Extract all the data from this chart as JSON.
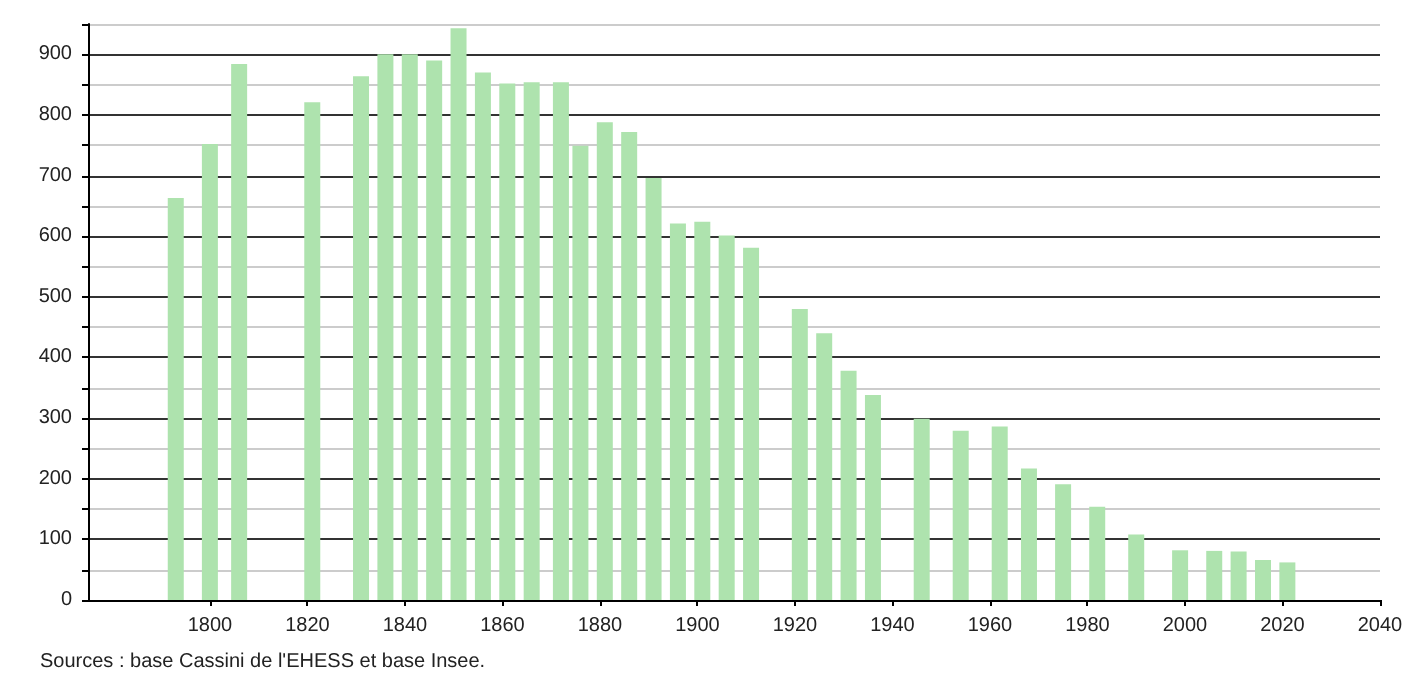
{
  "chart_data": {
    "type": "bar",
    "x": [
      1793,
      1800,
      1806,
      1821,
      1831,
      1836,
      1841,
      1846,
      1851,
      1856,
      1861,
      1866,
      1872,
      1876,
      1881,
      1886,
      1891,
      1896,
      1901,
      1906,
      1911,
      1921,
      1926,
      1931,
      1936,
      1946,
      1954,
      1962,
      1968,
      1975,
      1982,
      1990,
      1999,
      2006,
      2011,
      2016,
      2021
    ],
    "values": [
      663,
      752,
      884,
      821,
      864,
      900,
      900,
      890,
      943,
      870,
      852,
      854,
      854,
      749,
      788,
      772,
      696,
      621,
      624,
      601,
      581,
      480,
      440,
      378,
      338,
      299,
      279,
      286,
      217,
      191,
      154,
      108,
      82,
      81,
      80,
      66,
      62
    ],
    "color": "#aee3ae",
    "xlim": [
      1775,
      2040
    ],
    "xticks": [
      1800,
      1820,
      1840,
      1860,
      1880,
      1900,
      1920,
      1940,
      1960,
      1980,
      2000,
      2020,
      2040
    ],
    "ylim": [
      0,
      950
    ],
    "yticks": [
      0,
      {
        "value": 50,
        "label": null
      },
      100,
      {
        "value": 150,
        "label": null
      },
      200,
      {
        "value": 250,
        "label": null
      },
      300,
      {
        "value": 350,
        "label": null
      },
      400,
      {
        "value": 450,
        "label": null
      },
      500,
      {
        "value": 550,
        "label": null
      },
      600,
      {
        "value": 650,
        "label": null
      },
      700,
      {
        "value": 750,
        "label": null
      },
      800,
      {
        "value": 850,
        "label": null
      },
      900,
      {
        "value": 950,
        "label": null
      }
    ],
    "grid": "y",
    "annotations": [
      "Sources : base Cassini de l'EHESS et base Insee."
    ]
  }
}
